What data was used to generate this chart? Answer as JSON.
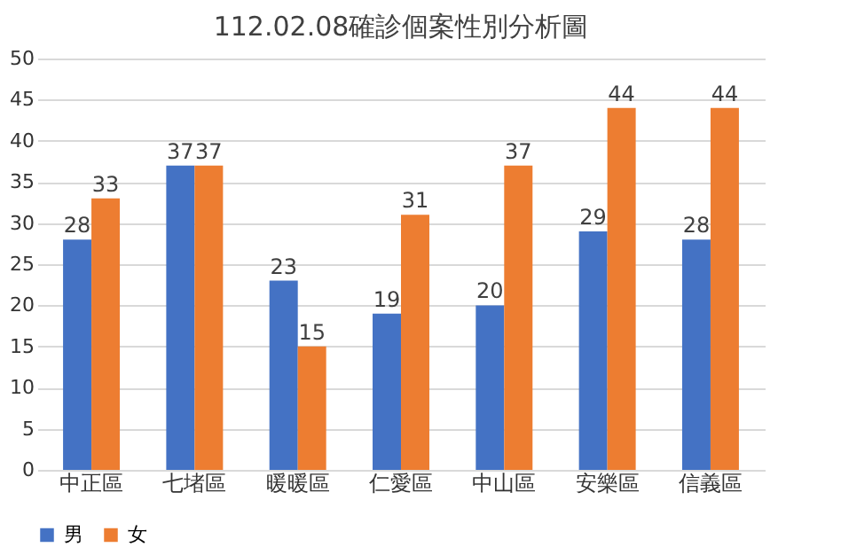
{
  "chart_data": {
    "type": "bar",
    "title": "112.02.08確診個案性別分析圖",
    "categories": [
      "中正區",
      "七堵區",
      "暖暖區",
      "仁愛區",
      "中山區",
      "安樂區",
      "信義區"
    ],
    "series": [
      {
        "name": "男",
        "color": "#4472c4",
        "values": [
          28,
          37,
          23,
          19,
          20,
          29,
          28
        ]
      },
      {
        "name": "女",
        "color": "#ed7d31",
        "values": [
          33,
          37,
          15,
          31,
          37,
          44,
          44
        ]
      }
    ],
    "ylim": [
      0,
      50
    ],
    "yticks": [
      0,
      5,
      10,
      15,
      20,
      25,
      30,
      35,
      40,
      45,
      50
    ],
    "grid": "y",
    "legend": "bottom",
    "data_labels": true
  }
}
